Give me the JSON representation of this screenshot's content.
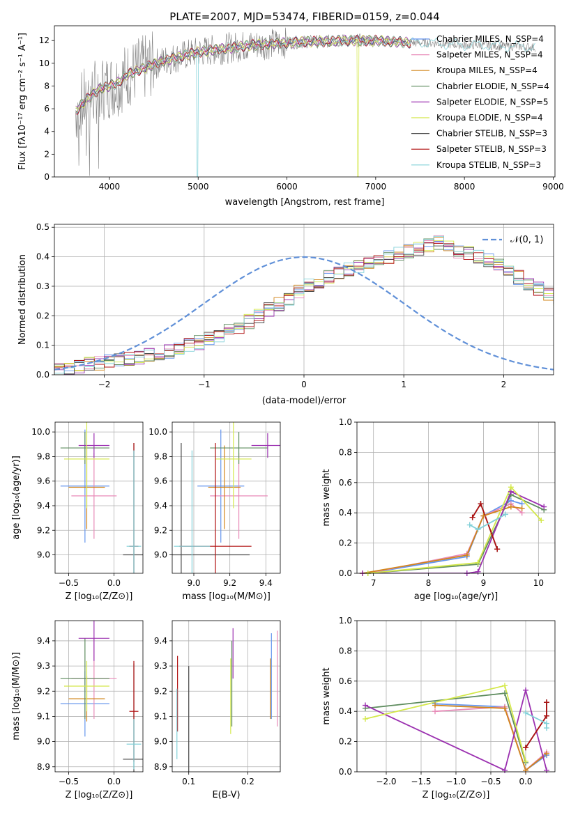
{
  "title": "PLATE=2007, MJD=53474, FIBERID=0159, z=0.044",
  "colors": {
    "chabrier_miles": "#6495ED",
    "salpeter_miles": "#E88AB8",
    "kroupa_miles": "#D2851A",
    "chabrier_elodie": "#5E8C5E",
    "salpeter_elodie": "#9B30B0",
    "kroupa_elodie": "#D4E84A",
    "chabrier_stelib": "#4A4A4A",
    "salpeter_stelib": "#B01010",
    "kroupa_stelib": "#80D0D8",
    "data": "#808080",
    "gaussian": "#6090D8"
  },
  "chart_data": [
    {
      "type": "line",
      "xlabel": "wavelength [Angstrom, rest frame]",
      "ylabel": "Flux [fλ10⁻¹⁷ erg cm⁻² s⁻¹ A⁻¹]",
      "xlim": [
        3380,
        9020
      ],
      "ylim": [
        0,
        13.3
      ],
      "xticks": [
        "4000",
        "5000",
        "6000",
        "7000",
        "8000",
        "9000"
      ],
      "yticks": [
        "0",
        "2",
        "4",
        "6",
        "8",
        "10",
        "12"
      ],
      "legend": "top-right",
      "series": [
        {
          "name": "Chabrier MILES, N_SSP=4",
          "color_key": "chabrier_miles"
        },
        {
          "name": "Salpeter MILES, N_SSP=4",
          "color_key": "salpeter_miles"
        },
        {
          "name": "Kroupa MILES, N_SSP=4",
          "color_key": "kroupa_miles"
        },
        {
          "name": "Chabrier ELODIE, N_SSP=4",
          "color_key": "chabrier_elodie"
        },
        {
          "name": "Salpeter ELODIE, N_SSP=5",
          "color_key": "salpeter_elodie"
        },
        {
          "name": "Kroupa ELODIE, N_SSP=4",
          "color_key": "kroupa_elodie"
        },
        {
          "name": "Chabrier STELIB, N_SSP=3",
          "color_key": "chabrier_stelib"
        },
        {
          "name": "Salpeter STELIB, N_SSP=3",
          "color_key": "salpeter_stelib"
        },
        {
          "name": "Kroupa STELIB, N_SSP=3",
          "color_key": "kroupa_stelib"
        }
      ],
      "continuum": {
        "x": [
          3620,
          3700,
          3800,
          3900,
          4000,
          4100,
          4200,
          4300,
          4400,
          4500,
          4600,
          4800,
          5000,
          5200,
          5400,
          5600,
          5800,
          6000,
          6200,
          6400,
          6600,
          6800,
          7000,
          7200,
          7400,
          7600,
          7800,
          8000,
          8200,
          8400,
          8600,
          8800
        ],
        "y": [
          5.8,
          6.5,
          7.2,
          7.8,
          8.0,
          8.3,
          9.0,
          9.3,
          9.6,
          9.9,
          10.2,
          10.6,
          11.0,
          11.2,
          11.4,
          11.6,
          11.7,
          11.8,
          11.9,
          11.9,
          12.0,
          12.0,
          12.0,
          11.9,
          11.8,
          11.8,
          11.7,
          11.6,
          11.6,
          11.5,
          11.5,
          11.4
        ]
      }
    },
    {
      "type": "bar",
      "xlabel": "(data-model)/error",
      "ylabel": "Normed distribution",
      "xlim": [
        -2.5,
        2.5
      ],
      "ylim": [
        0,
        0.51
      ],
      "xticks": [
        "−2",
        "−1",
        "0",
        "1",
        "2"
      ],
      "yticks": [
        "0.0",
        "0.1",
        "0.2",
        "0.3",
        "0.4",
        "0.5"
      ],
      "legend": "top-right",
      "gaussian_label": "𝒩(0, 1)",
      "bin_width": 0.1,
      "bin_start": -2.5,
      "histogram_base": [
        0.02,
        0.025,
        0.03,
        0.035,
        0.04,
        0.045,
        0.05,
        0.055,
        0.06,
        0.065,
        0.07,
        0.08,
        0.09,
        0.1,
        0.11,
        0.12,
        0.135,
        0.15,
        0.165,
        0.18,
        0.2,
        0.22,
        0.24,
        0.26,
        0.28,
        0.3,
        0.315,
        0.33,
        0.345,
        0.36,
        0.37,
        0.38,
        0.39,
        0.4,
        0.41,
        0.42,
        0.43,
        0.44,
        0.45,
        0.43,
        0.42,
        0.41,
        0.4,
        0.39,
        0.37,
        0.35,
        0.33,
        0.31,
        0.29,
        0.27,
        0.25,
        0.23,
        0.21,
        0.19,
        0.17,
        0.15,
        0.13,
        0.11,
        0.095,
        0.08,
        0.07,
        0.06,
        0.05,
        0.045,
        0.04,
        0.035,
        0.03,
        0.025,
        0.022,
        0.02
      ]
    },
    {
      "type": "scatter",
      "xlabel": "Z [log₁₀(Z/Z⊙)]",
      "ylabel": "age  [log₁₀(age/yr)]",
      "xlim": [
        -0.65,
        0.32
      ],
      "ylim": [
        8.85,
        10.08
      ],
      "xticks": [
        "−0.5",
        "0.0"
      ],
      "xtick_values": [
        -0.5,
        0.0
      ],
      "yticks": [
        "9.0",
        "9.2",
        "9.4",
        "9.6",
        "9.8",
        "10.0"
      ],
      "ytick_values": [
        9.0,
        9.2,
        9.4,
        9.6,
        9.8,
        10.0
      ],
      "points": [
        {
          "k": "chabrier_miles",
          "x": -0.32,
          "y": 9.56,
          "xe": 0.27,
          "ye": 0.46
        },
        {
          "k": "salpeter_miles",
          "x": -0.22,
          "y": 9.48,
          "xe": 0.25,
          "ye": 0.35
        },
        {
          "k": "kroupa_miles",
          "x": -0.3,
          "y": 9.55,
          "xe": 0.2,
          "ye": 0.34
        },
        {
          "k": "chabrier_elodie",
          "x": -0.32,
          "y": 9.87,
          "xe": 0.27,
          "ye": 0.13
        },
        {
          "k": "salpeter_elodie",
          "x": -0.22,
          "y": 9.89,
          "xe": 0.17,
          "ye": 0.1
        },
        {
          "k": "kroupa_elodie",
          "x": -0.3,
          "y": 9.78,
          "xe": 0.25,
          "ye": 0.4
        },
        {
          "k": "chabrier_stelib",
          "x": 0.22,
          "y": 9.0,
          "xe": 0.12,
          "ye": 0.91
        },
        {
          "k": "salpeter_stelib",
          "x": 0.22,
          "y": 9.07,
          "xe": 0.05,
          "ye": 0.84
        },
        {
          "k": "kroupa_stelib",
          "x": 0.22,
          "y": 9.07,
          "xe": 0.08,
          "ye": 0.78
        }
      ]
    },
    {
      "type": "scatter",
      "xlabel": "mass [log₁₀(M/M⊙)]",
      "ylabel": "",
      "xlim": [
        8.88,
        9.48
      ],
      "ylim": [
        8.85,
        10.08
      ],
      "xticks": [
        "9.0",
        "9.2",
        "9.4"
      ],
      "xtick_values": [
        9.0,
        9.2,
        9.4
      ],
      "yticks": [
        "9.0",
        "9.2",
        "9.4",
        "9.6",
        "9.8",
        "10.0"
      ],
      "ytick_values": [
        9.0,
        9.2,
        9.4,
        9.6,
        9.8,
        10.0
      ],
      "points": [
        {
          "k": "chabrier_miles",
          "x": 9.15,
          "y": 9.56,
          "xe": 0.13,
          "ye": 0.46
        },
        {
          "k": "salpeter_miles",
          "x": 9.25,
          "y": 9.48,
          "xe": 0.16,
          "ye": 0.35
        },
        {
          "k": "kroupa_miles",
          "x": 9.17,
          "y": 9.55,
          "xe": 0.09,
          "ye": 0.34
        },
        {
          "k": "chabrier_elodie",
          "x": 9.25,
          "y": 9.87,
          "xe": 0.16,
          "ye": 0.13
        },
        {
          "k": "salpeter_elodie",
          "x": 9.41,
          "y": 9.89,
          "xe": 0.09,
          "ye": 0.1
        },
        {
          "k": "kroupa_elodie",
          "x": 9.22,
          "y": 9.78,
          "xe": 0.1,
          "ye": 0.4
        },
        {
          "k": "chabrier_stelib",
          "x": 8.93,
          "y": 9.0,
          "xe": 0.38,
          "ye": 0.91
        },
        {
          "k": "salpeter_stelib",
          "x": 9.12,
          "y": 9.07,
          "xe": 0.2,
          "ye": 0.84
        },
        {
          "k": "kroupa_stelib",
          "x": 8.99,
          "y": 9.07,
          "xe": 0.1,
          "ye": 0.78
        }
      ]
    },
    {
      "type": "line",
      "xlabel": "age  [log₁₀(age/yr)]",
      "ylabel": "mass weight",
      "xlim": [
        6.7,
        10.3
      ],
      "ylim": [
        0,
        1.0
      ],
      "xticks": [
        "7",
        "8",
        "9",
        "10"
      ],
      "xtick_values": [
        7,
        8,
        9,
        10
      ],
      "yticks": [
        "0.0",
        "0.2",
        "0.4",
        "0.6",
        "0.8",
        "1.0"
      ],
      "ytick_values": [
        0,
        0.2,
        0.4,
        0.6,
        0.8,
        1.0
      ],
      "series": [
        {
          "k": "chabrier_miles",
          "x": [
            6.9,
            8.7,
            9.0,
            9.5,
            9.7
          ],
          "y": [
            0.0,
            0.11,
            0.38,
            0.48,
            0.46
          ]
        },
        {
          "k": "salpeter_miles",
          "x": [
            6.9,
            8.7,
            9.0,
            9.5,
            9.7
          ],
          "y": [
            0.0,
            0.13,
            0.38,
            0.46,
            0.4
          ]
        },
        {
          "k": "kroupa_miles",
          "x": [
            6.8,
            8.7,
            9.0,
            9.5,
            9.7
          ],
          "y": [
            0.0,
            0.12,
            0.38,
            0.44,
            0.43
          ]
        },
        {
          "k": "chabrier_elodie",
          "x": [
            6.9,
            8.9,
            9.5,
            10.1
          ],
          "y": [
            0.0,
            0.06,
            0.52,
            0.42
          ]
        },
        {
          "k": "salpeter_elodie",
          "x": [
            6.8,
            8.7,
            8.9,
            9.5,
            10.1
          ],
          "y": [
            0.0,
            0.0,
            0.01,
            0.54,
            0.44
          ]
        },
        {
          "k": "kroupa_elodie",
          "x": [
            6.9,
            8.9,
            9.5,
            10.05
          ],
          "y": [
            0.0,
            0.07,
            0.57,
            0.35
          ]
        },
        {
          "k": "chabrier_stelib",
          "x": [
            8.8,
            8.95,
            9.25
          ],
          "y": [
            0.37,
            0.46,
            0.16
          ]
        },
        {
          "k": "salpeter_stelib",
          "x": [
            8.8,
            8.95,
            9.25
          ],
          "y": [
            0.37,
            0.46,
            0.16
          ]
        },
        {
          "k": "kroupa_stelib",
          "x": [
            8.75,
            8.9,
            9.4
          ],
          "y": [
            0.32,
            0.29,
            0.39
          ]
        }
      ]
    },
    {
      "type": "scatter",
      "xlabel": "Z [log₁₀(Z/Z⊙)]",
      "ylabel": "mass [log₁₀(M/M⊙)]",
      "xlim": [
        -0.65,
        0.32
      ],
      "ylim": [
        8.88,
        9.48
      ],
      "xticks": [
        "−0.5",
        "0.0"
      ],
      "xtick_values": [
        -0.5,
        0.0
      ],
      "yticks": [
        "8.9",
        "9.0",
        "9.1",
        "9.2",
        "9.3",
        "9.4"
      ],
      "ytick_values": [
        8.9,
        9.0,
        9.1,
        9.2,
        9.3,
        9.4
      ],
      "points": [
        {
          "k": "chabrier_miles",
          "x": -0.32,
          "y": 9.15,
          "xe": 0.27,
          "ye": 0.13
        },
        {
          "k": "salpeter_miles",
          "x": -0.22,
          "y": 9.25,
          "xe": 0.25,
          "ye": 0.16
        },
        {
          "k": "kroupa_miles",
          "x": -0.3,
          "y": 9.17,
          "xe": 0.2,
          "ye": 0.09
        },
        {
          "k": "chabrier_elodie",
          "x": -0.32,
          "y": 9.25,
          "xe": 0.27,
          "ye": 0.16
        },
        {
          "k": "salpeter_elodie",
          "x": -0.22,
          "y": 9.41,
          "xe": 0.17,
          "ye": 0.09
        },
        {
          "k": "kroupa_elodie",
          "x": -0.3,
          "y": 9.22,
          "xe": 0.25,
          "ye": 0.1
        },
        {
          "k": "chabrier_stelib",
          "x": 0.22,
          "y": 8.93,
          "xe": 0.12,
          "ye": 0.38
        },
        {
          "k": "salpeter_stelib",
          "x": 0.22,
          "y": 9.12,
          "xe": 0.05,
          "ye": 0.2
        },
        {
          "k": "kroupa_stelib",
          "x": 0.22,
          "y": 8.99,
          "xe": 0.08,
          "ye": 0.1
        }
      ]
    },
    {
      "type": "scatter",
      "xlabel": "E(B-V)",
      "ylabel": "",
      "xlim": [
        0.072,
        0.255
      ],
      "ylim": [
        8.88,
        9.48
      ],
      "xticks": [
        "0.1",
        "0.2"
      ],
      "xtick_values": [
        0.1,
        0.2
      ],
      "yticks": [
        "8.9",
        "9.0",
        "9.1",
        "9.2",
        "9.3",
        "9.4"
      ],
      "ytick_values": [
        8.9,
        9.0,
        9.1,
        9.2,
        9.3,
        9.4
      ],
      "points": [
        {
          "k": "chabrier_miles",
          "x": 0.24,
          "y": 9.26,
          "xe": 0,
          "ye": 0.17
        },
        {
          "k": "salpeter_miles",
          "x": 0.25,
          "y": 9.25,
          "xe": 0,
          "ye": 0.19
        },
        {
          "k": "kroupa_miles",
          "x": 0.238,
          "y": 9.21,
          "xe": 0,
          "ye": 0.12
        },
        {
          "k": "chabrier_elodie",
          "x": 0.173,
          "y": 9.23,
          "xe": 0,
          "ye": 0.17
        },
        {
          "k": "salpeter_elodie",
          "x": 0.175,
          "y": 9.35,
          "xe": 0,
          "ye": 0.1
        },
        {
          "k": "kroupa_elodie",
          "x": 0.171,
          "y": 9.18,
          "xe": 0,
          "ye": 0.15
        },
        {
          "k": "chabrier_stelib",
          "x": 0.1,
          "y": 9.0,
          "xe": 0,
          "ye": 0.3
        },
        {
          "k": "salpeter_stelib",
          "x": 0.081,
          "y": 9.19,
          "xe": 0,
          "ye": 0.15
        },
        {
          "k": "kroupa_stelib",
          "x": 0.08,
          "y": 9.07,
          "xe": 0,
          "ye": 0.14
        }
      ]
    },
    {
      "type": "line",
      "xlabel": "Z [log₁₀(Z/Z⊙)]",
      "ylabel": "mass weight",
      "xlim": [
        -2.42,
        0.42
      ],
      "ylim": [
        0,
        1.0
      ],
      "xticks": [
        "−2.0",
        "−1.5",
        "−1.0",
        "−0.5",
        "0.0"
      ],
      "xtick_values": [
        -2.0,
        -1.5,
        -1.0,
        -0.5,
        0.0
      ],
      "yticks": [
        "0.0",
        "0.2",
        "0.4",
        "0.6",
        "0.8",
        "1.0"
      ],
      "ytick_values": [
        0,
        0.2,
        0.4,
        0.6,
        0.8,
        1.0
      ],
      "series": [
        {
          "k": "chabrier_miles",
          "x": [
            -1.3,
            -0.3,
            0.0,
            0.3
          ],
          "y": [
            0.45,
            0.43,
            0.01,
            0.11
          ]
        },
        {
          "k": "salpeter_miles",
          "x": [
            -1.3,
            -0.3,
            0.0,
            0.3
          ],
          "y": [
            0.4,
            0.43,
            0.01,
            0.13
          ]
        },
        {
          "k": "kroupa_miles",
          "x": [
            -1.3,
            -0.3,
            0.0,
            0.3
          ],
          "y": [
            0.44,
            0.42,
            0.01,
            0.12
          ]
        },
        {
          "k": "chabrier_elodie",
          "x": [
            -2.3,
            -0.3,
            0.0
          ],
          "y": [
            0.42,
            0.52,
            0.06
          ]
        },
        {
          "k": "salpeter_elodie",
          "x": [
            -2.3,
            -0.3,
            0.0,
            0.3
          ],
          "y": [
            0.44,
            0.01,
            0.54,
            0.01
          ]
        },
        {
          "k": "kroupa_elodie",
          "x": [
            -2.3,
            -0.3,
            0.0
          ],
          "y": [
            0.35,
            0.57,
            0.07
          ]
        },
        {
          "k": "chabrier_stelib",
          "x": [
            0.0,
            0.3,
            0.3
          ],
          "y": [
            0.16,
            0.37,
            0.46
          ]
        },
        {
          "k": "salpeter_stelib",
          "x": [
            0.0,
            0.3,
            0.3
          ],
          "y": [
            0.16,
            0.37,
            0.46
          ]
        },
        {
          "k": "kroupa_stelib",
          "x": [
            0.0,
            0.3,
            0.3
          ],
          "y": [
            0.39,
            0.32,
            0.29
          ]
        }
      ]
    }
  ]
}
